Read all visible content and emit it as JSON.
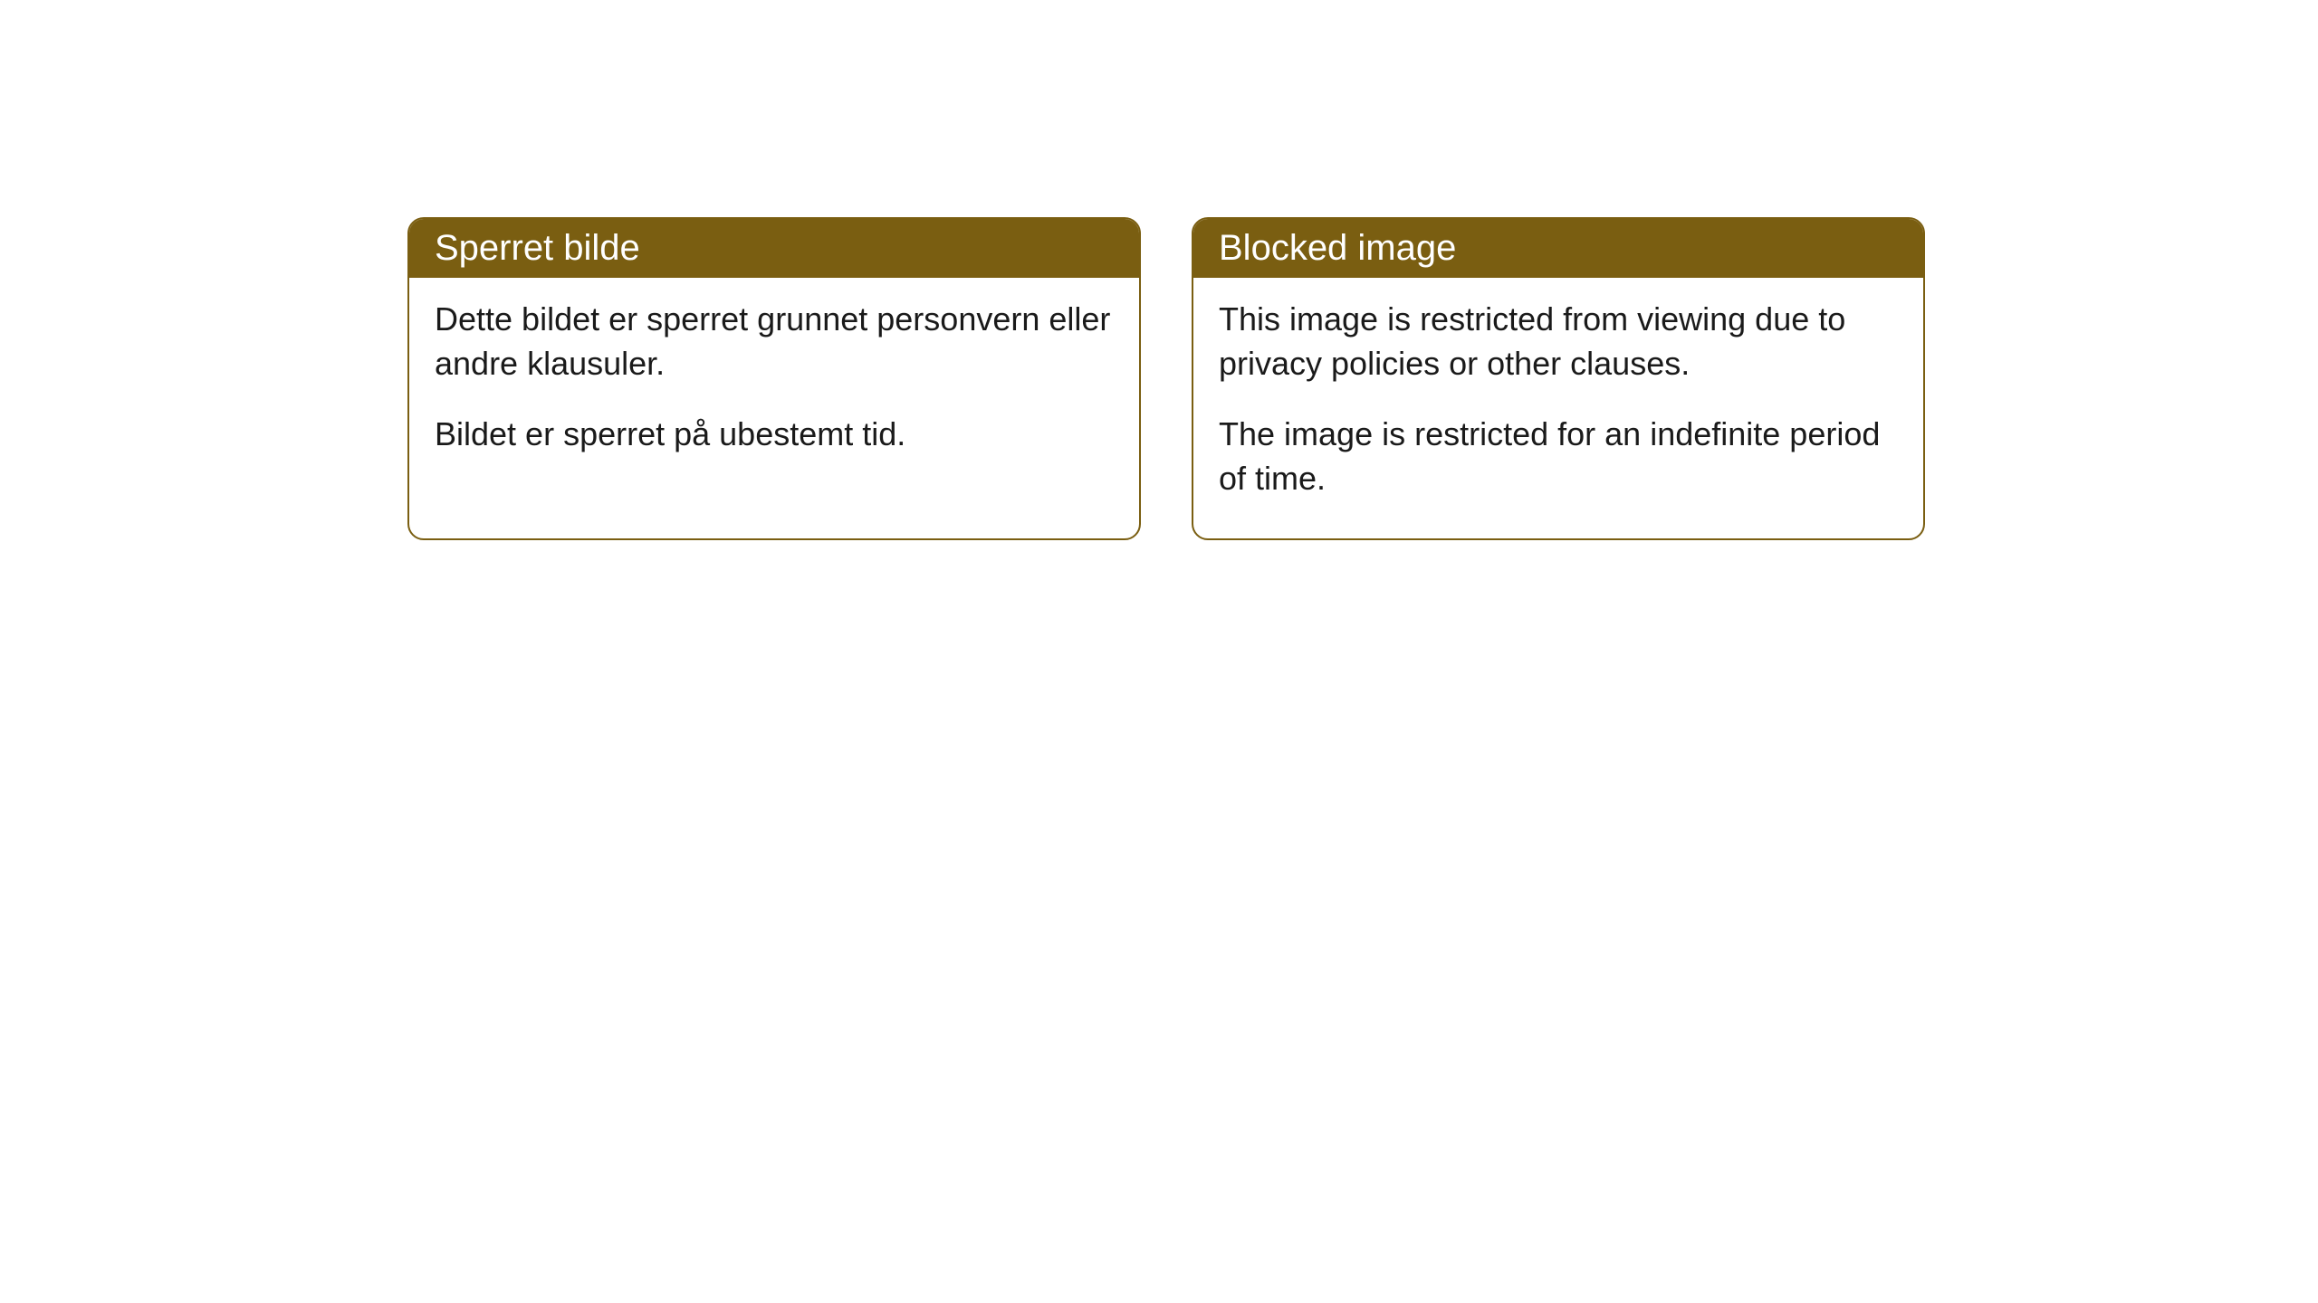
{
  "cards": [
    {
      "title": "Sperret bilde",
      "paragraph1": "Dette bildet er sperret grunnet personvern eller andre klausuler.",
      "paragraph2": "Bildet er sperret på ubestemt tid."
    },
    {
      "title": "Blocked image",
      "paragraph1": "This image is restricted from viewing due to privacy policies or other clauses.",
      "paragraph2": "The image is restricted for an indefinite period of time."
    }
  ],
  "style": {
    "header_background": "#7a5e11",
    "header_text_color": "#ffffff",
    "border_color": "#7a5e11",
    "body_background": "#ffffff",
    "body_text_color": "#1a1a1a",
    "border_radius": 18,
    "title_fontsize": 40,
    "body_fontsize": 36
  }
}
